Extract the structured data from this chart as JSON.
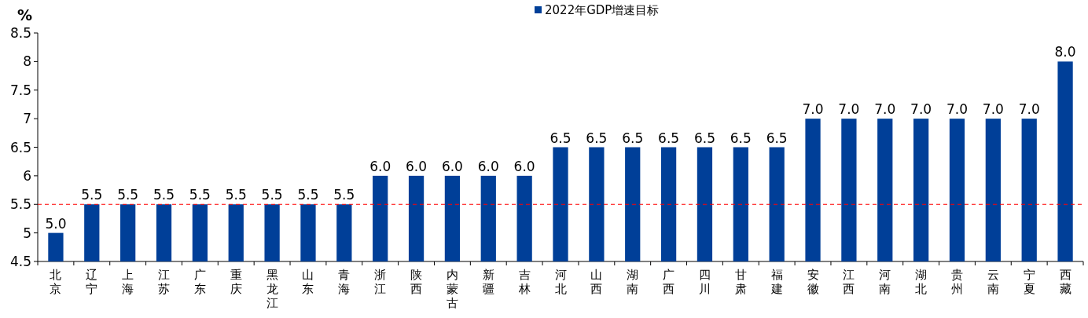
{
  "chart_data": {
    "type": "bar",
    "ylabel": "%",
    "legend": "top",
    "categories": [
      "北京",
      "辽宁",
      "上海",
      "江苏",
      "广东",
      "重庆",
      "黑龙江",
      "山东",
      "青海",
      "浙江",
      "陕西",
      "内蒙古",
      "新疆",
      "吉林",
      "河北",
      "山西",
      "湖南",
      "广西",
      "四川",
      "甘肃",
      "福建",
      "安徽",
      "江西",
      "河南",
      "湖北",
      "贵州",
      "云南",
      "宁夏",
      "西藏"
    ],
    "series": [
      {
        "name": "2022年GDP增速目标",
        "color": "#003f98",
        "values": [
          5.0,
          5.5,
          5.5,
          5.5,
          5.5,
          5.5,
          5.5,
          5.5,
          5.5,
          6.0,
          6.0,
          6.0,
          6.0,
          6.0,
          6.5,
          6.5,
          6.5,
          6.5,
          6.5,
          6.5,
          6.5,
          7.0,
          7.0,
          7.0,
          7.0,
          7.0,
          7.0,
          7.0,
          8.0
        ],
        "value_labels": [
          "5.0",
          "5.5",
          "5.5",
          "5.5",
          "5.5",
          "5.5",
          "5.5",
          "5.5",
          "5.5",
          "6.0",
          "6.0",
          "6.0",
          "6.0",
          "6.0",
          "6.5",
          "6.5",
          "6.5",
          "6.5",
          "6.5",
          "6.5",
          "6.5",
          "7.0",
          "7.0",
          "7.0",
          "7.0",
          "7.0",
          "7.0",
          "7.0",
          "8.0"
        ]
      }
    ],
    "ylim": [
      4.5,
      8.5
    ],
    "yticks": [
      4.5,
      5,
      5.5,
      6,
      6.5,
      7,
      7.5,
      8,
      8.5
    ],
    "ref_lines": [
      {
        "axis": "y",
        "value": 5.5,
        "color": "#ff0000",
        "line_style": "dashed"
      }
    ]
  }
}
